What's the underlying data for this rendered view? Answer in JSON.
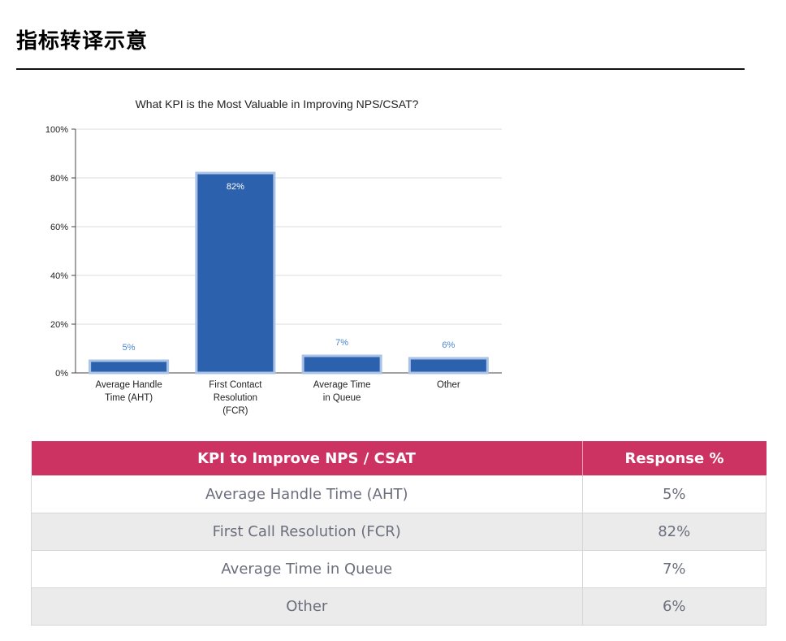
{
  "page": {
    "title": "指标转译示意"
  },
  "chart_data": {
    "type": "bar",
    "title": "What KPI is the Most Valuable in Improving NPS/CSAT?",
    "categories": [
      [
        "Average Handle",
        "Time (AHT)"
      ],
      [
        "First Contact",
        "Resolution",
        "(FCR)"
      ],
      [
        "Average Time",
        "in Queue"
      ],
      [
        "Other"
      ]
    ],
    "values": [
      5,
      82,
      7,
      6
    ],
    "data_labels": [
      "5%",
      "82%",
      "7%",
      "6%"
    ],
    "ylim": [
      0,
      100
    ],
    "yticks": [
      0,
      20,
      40,
      60,
      80,
      100
    ],
    "ytick_labels": [
      "0%",
      "20%",
      "40%",
      "60%",
      "80%",
      "100%"
    ],
    "grid": true,
    "colors": {
      "bar": "#2c62ad",
      "bar_outline": "#a9c2e6",
      "label_outside": "#4a86d0",
      "label_inside": "#ffffff"
    }
  },
  "table": {
    "headers": [
      "KPI to Improve NPS / CSAT",
      "Response %"
    ],
    "rows": [
      [
        "Average Handle Time (AHT)",
        "5%"
      ],
      [
        "First Call Resolution (FCR)",
        "82%"
      ],
      [
        "Average Time in Queue",
        "7%"
      ],
      [
        "Other",
        "6%"
      ]
    ],
    "header_color": "#cc3363"
  }
}
